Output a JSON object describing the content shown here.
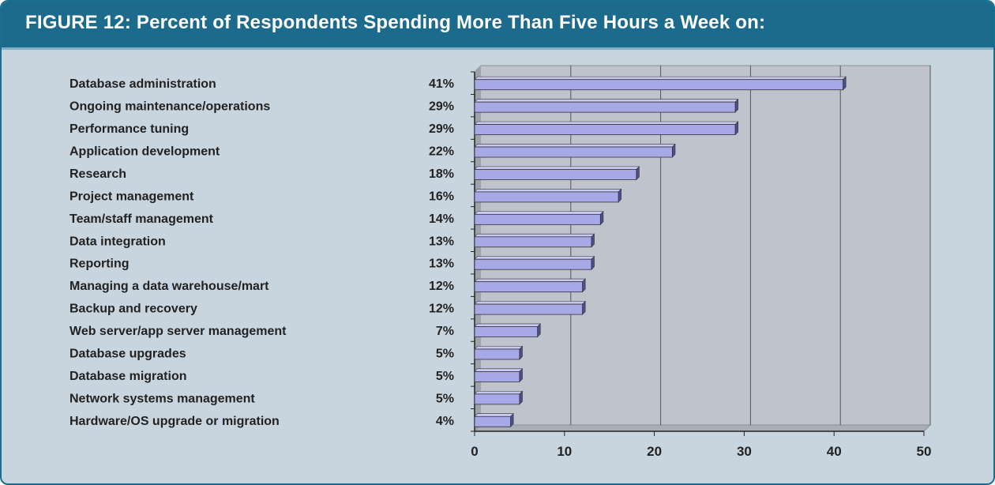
{
  "header": {
    "title": "FIGURE 12: Percent of Respondents Spending More Than Five Hours a Week on:"
  },
  "colors": {
    "header_bg": "#1c6b8c",
    "panel_bg": "#c9d5de",
    "plot_bg": "#bfc3cc",
    "bar_front": "#a7a8e6",
    "bar_top": "#c8c9f2",
    "bar_side": "#4c4e8e",
    "gridline": "#555555"
  },
  "chart_data": {
    "type": "bar",
    "orientation": "horizontal",
    "categories": [
      "Database administration",
      "Ongoing maintenance/operations",
      "Performance tuning",
      "Application development",
      "Research",
      "Project management",
      "Team/staff management",
      "Data integration",
      "Reporting",
      "Managing a data warehouse/mart",
      "Backup and recovery",
      "Web server/app server management",
      "Database upgrades",
      "Database migration",
      "Network systems management",
      "Hardware/OS upgrade or migration"
    ],
    "values": [
      41,
      29,
      29,
      22,
      18,
      16,
      14,
      13,
      13,
      12,
      12,
      7,
      5,
      5,
      5,
      4
    ],
    "value_labels": [
      "41%",
      "29%",
      "29%",
      "22%",
      "18%",
      "16%",
      "14%",
      "13%",
      "13%",
      "12%",
      "12%",
      "7%",
      "5%",
      "5%",
      "5%",
      "4%"
    ],
    "xlim": [
      0,
      50
    ],
    "x_ticks": [
      0,
      10,
      20,
      30,
      40,
      50
    ],
    "x_tick_labels": [
      "0",
      "10",
      "20",
      "30",
      "40",
      "50"
    ],
    "grid": true,
    "style": "3d"
  }
}
